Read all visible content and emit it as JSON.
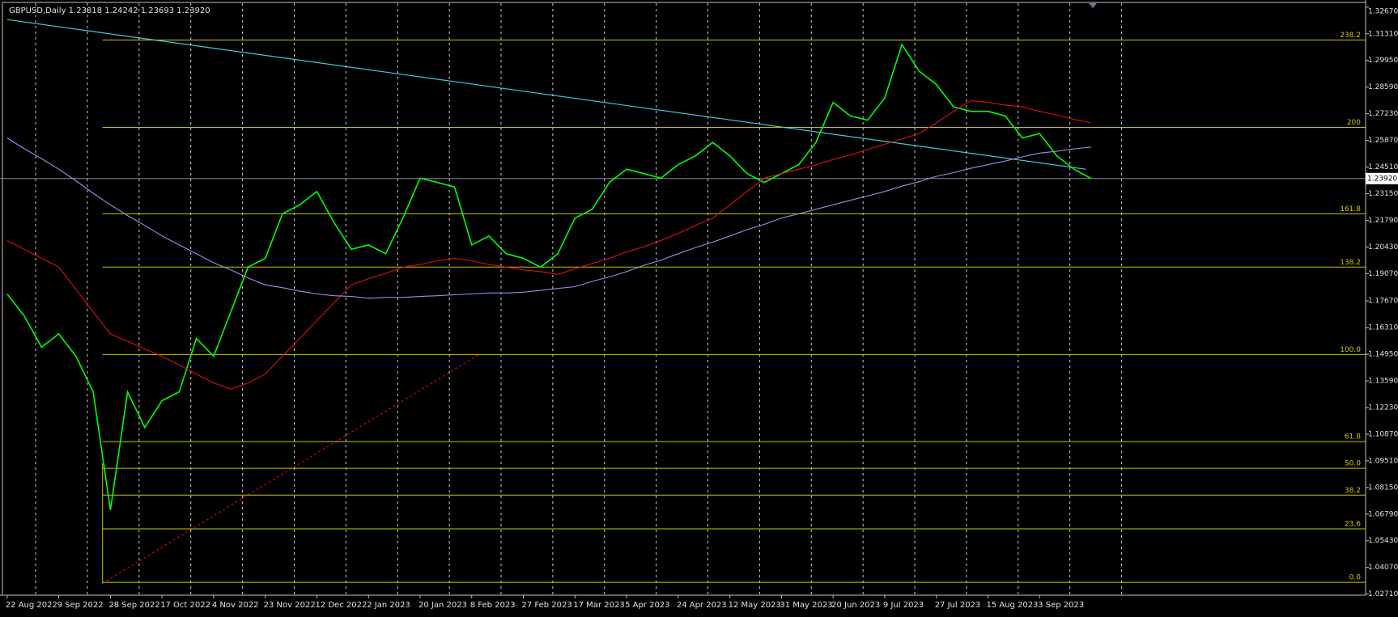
{
  "chart_data": {
    "type": "line",
    "title": "GBPUSD,Daily  1.23818 1.24242 1.23693 1.23920",
    "categories": [
      "22 Aug 2022",
      null,
      null,
      "9 Sep 2022",
      null,
      null,
      "28 Sep 2022",
      null,
      null,
      "17 Oct 2022",
      null,
      null,
      "4 Nov 2022",
      null,
      null,
      "23 Nov 2022",
      null,
      null,
      "12 Dec 2022",
      null,
      null,
      "2 Jan 2023",
      null,
      null,
      "20 Jan 2023",
      null,
      null,
      "8 Feb 2023",
      null,
      null,
      "27 Feb 2023",
      null,
      null,
      "17 Mar 2023",
      null,
      null,
      "5 Apr 2023",
      null,
      null,
      "24 Apr 2023",
      null,
      null,
      "12 May 2023",
      null,
      null,
      "31 May 2023",
      null,
      null,
      "20 Jun 2023",
      null,
      null,
      "9 Jul 2023",
      null,
      null,
      "27 Jul 2023",
      null,
      null,
      "15 Aug 2023",
      null,
      null,
      "3 Sep 2023",
      null,
      null,
      null
    ],
    "series": [
      {
        "color": "#00ff00",
        "values": [
          1.1803,
          1.169,
          1.1531,
          1.1599,
          1.1485,
          1.1303,
          1.07,
          1.1303,
          1.1121,
          1.1258,
          1.1303,
          1.1576,
          1.1485,
          1.1712,
          1.194,
          1.1985,
          1.2212,
          1.2258,
          1.2326,
          1.2167,
          1.2031,
          1.2053,
          1.2008,
          1.219,
          1.2394,
          1.2372,
          1.2349,
          1.2053,
          1.2099,
          1.2008,
          1.1985,
          1.194,
          1.2008,
          1.219,
          1.2235,
          1.2372,
          1.244,
          1.2417,
          1.2394,
          1.2463,
          1.2508,
          1.2576,
          1.2508,
          1.2417,
          1.2372,
          1.2417,
          1.2463,
          1.2576,
          1.2781,
          1.2712,
          1.269,
          1.2803,
          1.3076,
          1.294,
          1.2872,
          1.2758,
          1.2735,
          1.2735,
          1.2712,
          1.2599,
          1.2622,
          1.2508,
          1.244,
          1.2392
        ]
      },
      {
        "color": "#e01010",
        "values": [
          1.2076,
          1.2031,
          1.1985,
          1.194,
          1.1826,
          1.1712,
          1.1599,
          1.1562,
          1.1522,
          1.1485,
          1.144,
          1.1394,
          1.1349,
          1.1317,
          1.1349,
          1.1394,
          1.1485,
          1.1576,
          1.1667,
          1.1758,
          1.1849,
          1.1881,
          1.1908,
          1.194,
          1.1953,
          1.1972,
          1.1985,
          1.1972,
          1.1953,
          1.194,
          1.1926,
          1.1917,
          1.1903,
          1.1931,
          1.1958,
          1.1985,
          1.2017,
          1.2044,
          1.2076,
          1.2112,
          1.2153,
          1.219,
          1.2258,
          1.2326,
          1.2394,
          1.2417,
          1.244,
          1.2462,
          1.249,
          1.2512,
          1.254,
          1.2567,
          1.2594,
          1.2622,
          1.2676,
          1.2735,
          1.279,
          1.2781,
          1.2767,
          1.2758,
          1.2735,
          1.2717,
          1.2694,
          1.2676
        ]
      },
      {
        "color": "#9b8cf0",
        "values": [
          1.2599,
          1.2544,
          1.2494,
          1.244,
          1.2381,
          1.2317,
          1.2258,
          1.2203,
          1.2153,
          1.2099,
          1.2053,
          1.2008,
          1.1962,
          1.1926,
          1.1885,
          1.1849,
          1.1835,
          1.1817,
          1.1803,
          1.1794,
          1.179,
          1.1781,
          1.1785,
          1.1785,
          1.179,
          1.1794,
          1.1799,
          1.1803,
          1.1808,
          1.1808,
          1.1812,
          1.1821,
          1.1831,
          1.184,
          1.1867,
          1.189,
          1.1917,
          1.1949,
          1.1976,
          1.2008,
          1.204,
          1.2067,
          1.2099,
          1.2131,
          1.2158,
          1.219,
          1.2212,
          1.2235,
          1.2258,
          1.2281,
          1.2303,
          1.2326,
          1.2353,
          1.2376,
          1.2403,
          1.2422,
          1.2444,
          1.2463,
          1.2481,
          1.2503,
          1.2522,
          1.2531,
          1.2544,
          1.2553
        ]
      }
    ],
    "ylim": [
      1.0271,
      1.3267
    ],
    "yticks": [
      {
        "value": 1.3267,
        "label": "1.32670"
      },
      {
        "value": 1.3131,
        "label": "1.31310"
      },
      {
        "value": 1.2995,
        "label": "1.29950"
      },
      {
        "value": 1.2859,
        "label": "1.28590"
      },
      {
        "value": 1.2723,
        "label": "1.27230"
      },
      {
        "value": 1.2587,
        "label": "1.25870"
      },
      {
        "value": 1.2451,
        "label": "1.24510"
      },
      {
        "value": 1.2315,
        "label": "1.23150"
      },
      {
        "value": 1.2179,
        "label": "1.21790"
      },
      {
        "value": 1.2043,
        "label": "1.20430"
      },
      {
        "value": 1.1907,
        "label": "1.19070"
      },
      {
        "value": 1.1767,
        "label": "1.17670"
      },
      {
        "value": 1.1631,
        "label": "1.16310"
      },
      {
        "value": 1.1495,
        "label": "1.14950"
      },
      {
        "value": 1.1359,
        "label": "1.13590"
      },
      {
        "value": 1.1223,
        "label": "1.12230"
      },
      {
        "value": 1.1087,
        "label": "1.10870"
      },
      {
        "value": 1.0951,
        "label": "1.09510"
      },
      {
        "value": 1.0815,
        "label": "1.08150"
      },
      {
        "value": 1.0679,
        "label": "1.06790"
      },
      {
        "value": 1.0543,
        "label": "1.05430"
      },
      {
        "value": 1.0407,
        "label": "1.04070"
      },
      {
        "value": 1.0271,
        "label": "1.02710"
      }
    ],
    "levels": [
      {
        "label": "238.2",
        "value": 1.3099
      },
      {
        "label": "200",
        "value": 1.2653
      },
      {
        "label": "161.8",
        "value": 1.2212
      },
      {
        "label": "138.2",
        "value": 1.194
      },
      {
        "label": "100.0",
        "value": 1.1494
      },
      {
        "label": "61.8",
        "value": 1.1049
      },
      {
        "label": "50.0",
        "value": 1.0913
      },
      {
        "label": "38.2",
        "value": 1.0776
      },
      {
        "label": "23.6",
        "value": 1.0604
      },
      {
        "label": "0.0",
        "value": 1.0331
      }
    ],
    "level_color": "#c8c800",
    "current_price": {
      "value": 1.2392,
      "label": "1.23920"
    }
  }
}
